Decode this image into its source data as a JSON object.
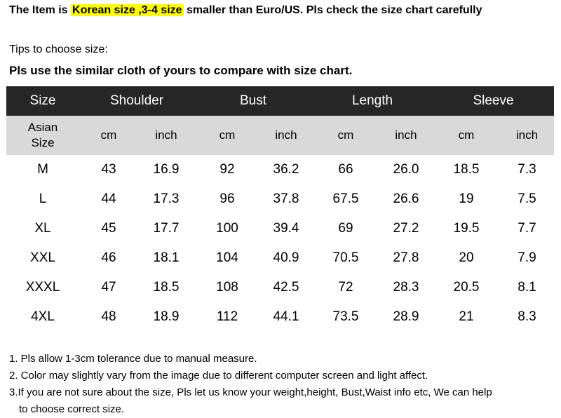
{
  "banner": {
    "prefix": "The Item is ",
    "highlight": "Korean size ,3-4 size",
    "suffix": " smaller than Euro/US. Pls check the size chart carefully"
  },
  "tips": {
    "line1": "Tips to choose size:",
    "line2": "Pls use the similar cloth of yours to compare with size chart."
  },
  "table": {
    "headers": [
      "Size",
      "Shoulder",
      "Bust",
      "Length",
      "Sleeve"
    ],
    "units_first_line1": "Asian",
    "units_first_line2": "Size",
    "units": [
      "cm",
      "inch",
      "cm",
      "inch",
      "cm",
      "inch",
      "cm",
      "inch"
    ],
    "rows": [
      [
        "M",
        "43",
        "16.9",
        "92",
        "36.2",
        "66",
        "26.0",
        "18.5",
        "7.3"
      ],
      [
        "L",
        "44",
        "17.3",
        "96",
        "37.8",
        "67.5",
        "26.6",
        "19",
        "7.5"
      ],
      [
        "XL",
        "45",
        "17.7",
        "100",
        "39.4",
        "69",
        "27.2",
        "19.5",
        "7.7"
      ],
      [
        "XXL",
        "46",
        "18.1",
        "104",
        "40.9",
        "70.5",
        "27.8",
        "20",
        "7.9"
      ],
      [
        "XXXL",
        "47",
        "18.5",
        "108",
        "42.5",
        "72",
        "28.3",
        "20.5",
        "8.1"
      ],
      [
        "4XL",
        "48",
        "18.9",
        "112",
        "44.1",
        "73.5",
        "28.9",
        "21",
        "8.3"
      ]
    ]
  },
  "notes": {
    "n1": "1. Pls allow 1-3cm tolerance due to manual measure.",
    "n2": "2. Color may slightly vary from the image due to different computer screen and light affect.",
    "n3a": "3.If you are not sure about the size, Pls let us know your weight,height, Bust,Waist info etc, We can help",
    "n3b": "to choose correct size."
  },
  "colors": {
    "highlight": "#ffff00",
    "header_bg": "#262626",
    "units_bg": "#d9d9d9"
  }
}
